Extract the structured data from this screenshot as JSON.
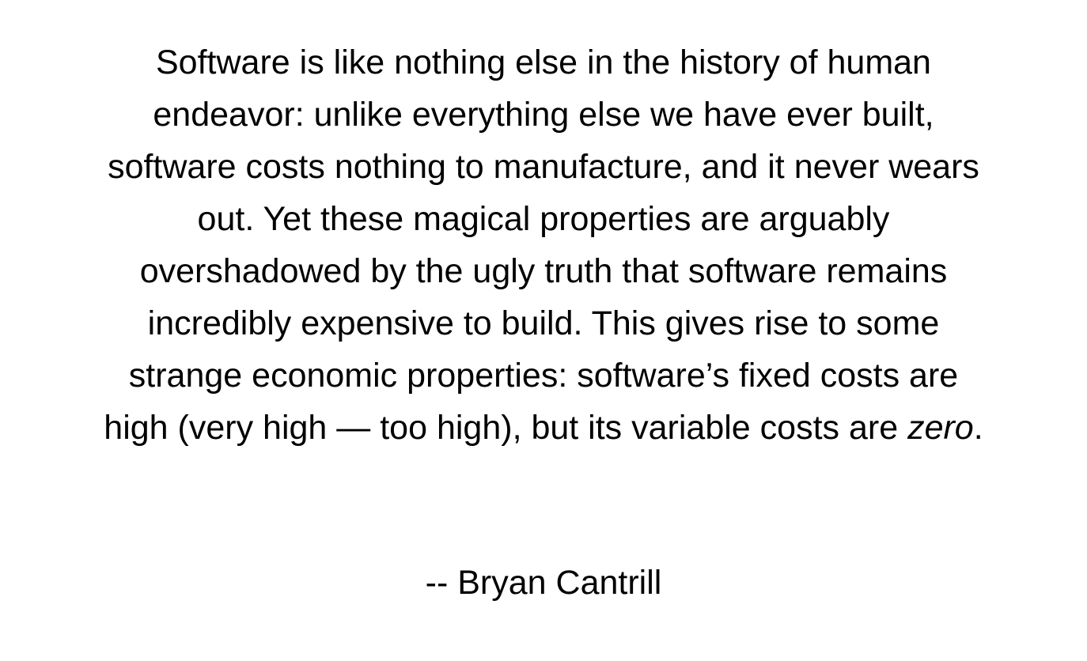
{
  "quote": {
    "lines": [
      "Software is like nothing else in the history of human",
      "endeavor: unlike everything else we have ever built,",
      "software costs nothing to manufacture, and it never wears",
      "out. Yet these magical properties are arguably",
      "overshadowed by the ugly truth that software remains",
      "incredibly expensive to build. This gives rise to some",
      "strange economic properties: software’s fixed costs are"
    ],
    "last_line_prefix": "high (very high — too high), but its variable costs are ",
    "last_line_emphasis": "zero",
    "last_line_suffix": "."
  },
  "attribution": "-- Bryan Cantrill"
}
